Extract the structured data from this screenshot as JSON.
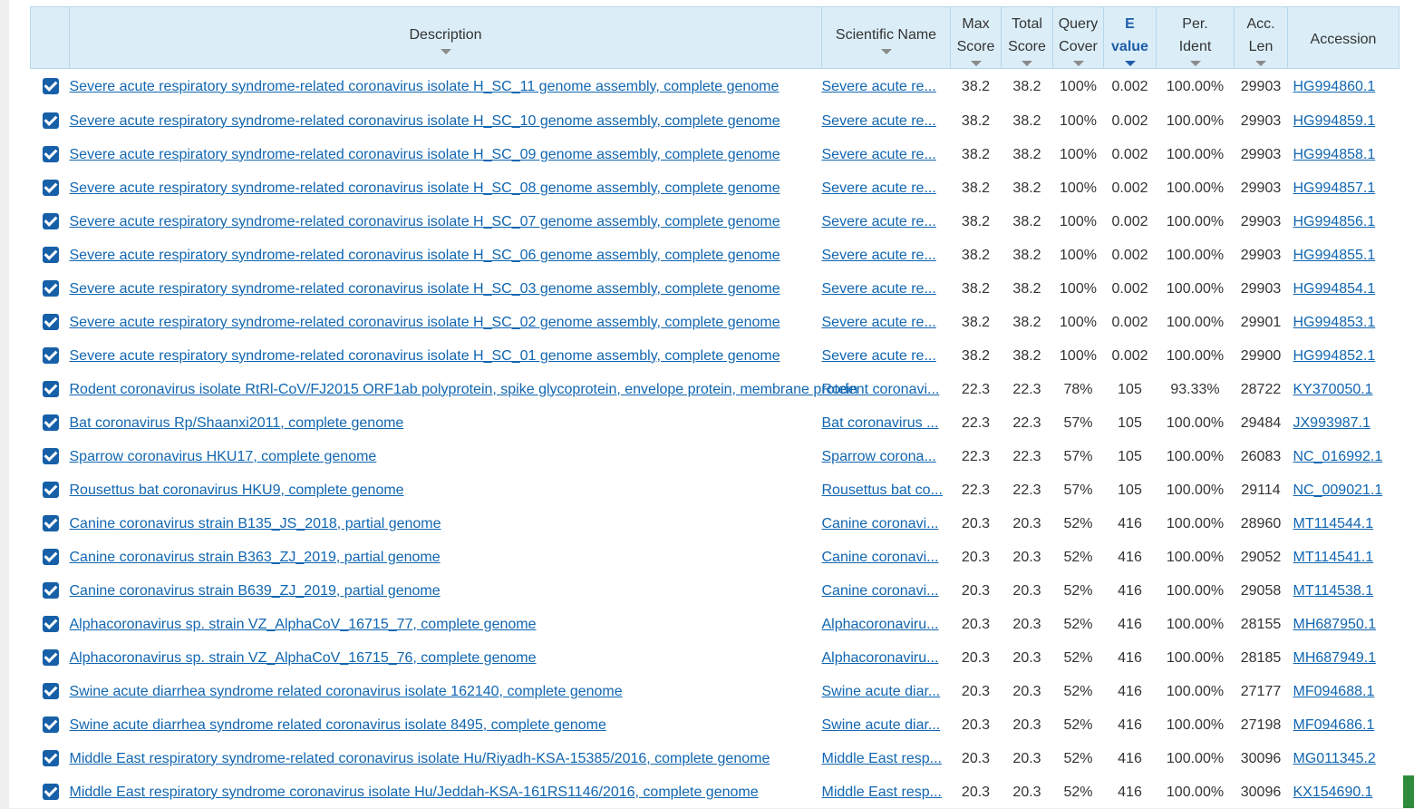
{
  "header": {
    "description": "Description",
    "scientific_name": "Scientific Name",
    "max_score_1": "Max",
    "max_score_2": "Score",
    "total_score_1": "Total",
    "total_score_2": "Score",
    "query_cover_1": "Query",
    "query_cover_2": "Cover",
    "evalue_1": "E",
    "evalue_2": "value",
    "per_ident_1": "Per.",
    "per_ident_2": "Ident",
    "acc_len_1": "Acc.",
    "acc_len_2": "Len",
    "accession": "Accession"
  },
  "colors": {
    "link": "#1166b1",
    "header_bg": "#dbeef8",
    "checkbox": "#1760a8"
  },
  "rows": [
    {
      "desc": "Severe acute respiratory syndrome-related coronavirus isolate H_SC_11 genome assembly, complete genome",
      "sci": "Severe acute re...",
      "max": "38.2",
      "total": "38.2",
      "cover": "100%",
      "evalue": "0.002",
      "ident": "100.00%",
      "len": "29903",
      "acc": "HG994860.1"
    },
    {
      "desc": "Severe acute respiratory syndrome-related coronavirus isolate H_SC_10 genome assembly, complete genome",
      "sci": "Severe acute re...",
      "max": "38.2",
      "total": "38.2",
      "cover": "100%",
      "evalue": "0.002",
      "ident": "100.00%",
      "len": "29903",
      "acc": "HG994859.1"
    },
    {
      "desc": "Severe acute respiratory syndrome-related coronavirus isolate H_SC_09 genome assembly, complete genome",
      "sci": "Severe acute re...",
      "max": "38.2",
      "total": "38.2",
      "cover": "100%",
      "evalue": "0.002",
      "ident": "100.00%",
      "len": "29903",
      "acc": "HG994858.1"
    },
    {
      "desc": "Severe acute respiratory syndrome-related coronavirus isolate H_SC_08 genome assembly, complete genome",
      "sci": "Severe acute re...",
      "max": "38.2",
      "total": "38.2",
      "cover": "100%",
      "evalue": "0.002",
      "ident": "100.00%",
      "len": "29903",
      "acc": "HG994857.1"
    },
    {
      "desc": "Severe acute respiratory syndrome-related coronavirus isolate H_SC_07 genome assembly, complete genome",
      "sci": "Severe acute re...",
      "max": "38.2",
      "total": "38.2",
      "cover": "100%",
      "evalue": "0.002",
      "ident": "100.00%",
      "len": "29903",
      "acc": "HG994856.1"
    },
    {
      "desc": "Severe acute respiratory syndrome-related coronavirus isolate H_SC_06 genome assembly, complete genome",
      "sci": "Severe acute re...",
      "max": "38.2",
      "total": "38.2",
      "cover": "100%",
      "evalue": "0.002",
      "ident": "100.00%",
      "len": "29903",
      "acc": "HG994855.1"
    },
    {
      "desc": "Severe acute respiratory syndrome-related coronavirus isolate H_SC_03 genome assembly, complete genome",
      "sci": "Severe acute re...",
      "max": "38.2",
      "total": "38.2",
      "cover": "100%",
      "evalue": "0.002",
      "ident": "100.00%",
      "len": "29903",
      "acc": "HG994854.1"
    },
    {
      "desc": "Severe acute respiratory syndrome-related coronavirus isolate H_SC_02 genome assembly, complete genome",
      "sci": "Severe acute re...",
      "max": "38.2",
      "total": "38.2",
      "cover": "100%",
      "evalue": "0.002",
      "ident": "100.00%",
      "len": "29901",
      "acc": "HG994853.1"
    },
    {
      "desc": "Severe acute respiratory syndrome-related coronavirus isolate H_SC_01 genome assembly, complete genome",
      "sci": "Severe acute re...",
      "max": "38.2",
      "total": "38.2",
      "cover": "100%",
      "evalue": "0.002",
      "ident": "100.00%",
      "len": "29900",
      "acc": "HG994852.1"
    },
    {
      "desc": "Rodent coronavirus isolate RtRl-CoV/FJ2015 ORF1ab polyprotein, spike glycoprotein, envelope protein, membrane protein",
      "sci": "Rodent coronavi...",
      "max": "22.3",
      "total": "22.3",
      "cover": "78%",
      "evalue": "105",
      "ident": "93.33%",
      "len": "28722",
      "acc": "KY370050.1"
    },
    {
      "desc": "Bat coronavirus Rp/Shaanxi2011, complete genome",
      "sci": "Bat coronavirus ...",
      "max": "22.3",
      "total": "22.3",
      "cover": "57%",
      "evalue": "105",
      "ident": "100.00%",
      "len": "29484",
      "acc": "JX993987.1"
    },
    {
      "desc": "Sparrow coronavirus HKU17, complete genome",
      "sci": "Sparrow corona...",
      "max": "22.3",
      "total": "22.3",
      "cover": "57%",
      "evalue": "105",
      "ident": "100.00%",
      "len": "26083",
      "acc": "NC_016992.1"
    },
    {
      "desc": "Rousettus bat coronavirus HKU9, complete genome",
      "sci": "Rousettus bat co...",
      "max": "22.3",
      "total": "22.3",
      "cover": "57%",
      "evalue": "105",
      "ident": "100.00%",
      "len": "29114",
      "acc": "NC_009021.1"
    },
    {
      "desc": "Canine coronavirus strain B135_JS_2018, partial genome",
      "sci": "Canine coronavi...",
      "max": "20.3",
      "total": "20.3",
      "cover": "52%",
      "evalue": "416",
      "ident": "100.00%",
      "len": "28960",
      "acc": "MT114544.1"
    },
    {
      "desc": "Canine coronavirus strain B363_ZJ_2019, partial genome",
      "sci": "Canine coronavi...",
      "max": "20.3",
      "total": "20.3",
      "cover": "52%",
      "evalue": "416",
      "ident": "100.00%",
      "len": "29052",
      "acc": "MT114541.1"
    },
    {
      "desc": "Canine coronavirus strain B639_ZJ_2019, partial genome",
      "sci": "Canine coronavi...",
      "max": "20.3",
      "total": "20.3",
      "cover": "52%",
      "evalue": "416",
      "ident": "100.00%",
      "len": "29058",
      "acc": "MT114538.1"
    },
    {
      "desc": "Alphacoronavirus sp. strain VZ_AlphaCoV_16715_77, complete genome",
      "sci": "Alphacoronaviru...",
      "max": "20.3",
      "total": "20.3",
      "cover": "52%",
      "evalue": "416",
      "ident": "100.00%",
      "len": "28155",
      "acc": "MH687950.1"
    },
    {
      "desc": "Alphacoronavirus sp. strain VZ_AlphaCoV_16715_76, complete genome",
      "sci": "Alphacoronaviru...",
      "max": "20.3",
      "total": "20.3",
      "cover": "52%",
      "evalue": "416",
      "ident": "100.00%",
      "len": "28185",
      "acc": "MH687949.1"
    },
    {
      "desc": "Swine acute diarrhea syndrome related coronavirus isolate 162140, complete genome",
      "sci": "Swine acute diar...",
      "max": "20.3",
      "total": "20.3",
      "cover": "52%",
      "evalue": "416",
      "ident": "100.00%",
      "len": "27177",
      "acc": "MF094688.1"
    },
    {
      "desc": "Swine acute diarrhea syndrome related coronavirus isolate 8495, complete genome",
      "sci": "Swine acute diar...",
      "max": "20.3",
      "total": "20.3",
      "cover": "52%",
      "evalue": "416",
      "ident": "100.00%",
      "len": "27198",
      "acc": "MF094686.1"
    },
    {
      "desc": "Middle East respiratory syndrome-related coronavirus isolate Hu/Riyadh-KSA-15385/2016, complete genome",
      "sci": "Middle East resp...",
      "max": "20.3",
      "total": "20.3",
      "cover": "52%",
      "evalue": "416",
      "ident": "100.00%",
      "len": "30096",
      "acc": "MG011345.2"
    },
    {
      "desc": "Middle East respiratory syndrome coronavirus isolate Hu/Jeddah-KSA-161RS1146/2016, complete genome",
      "sci": "Middle East resp...",
      "max": "20.3",
      "total": "20.3",
      "cover": "52%",
      "evalue": "416",
      "ident": "100.00%",
      "len": "30096",
      "acc": "KX154690.1"
    }
  ]
}
